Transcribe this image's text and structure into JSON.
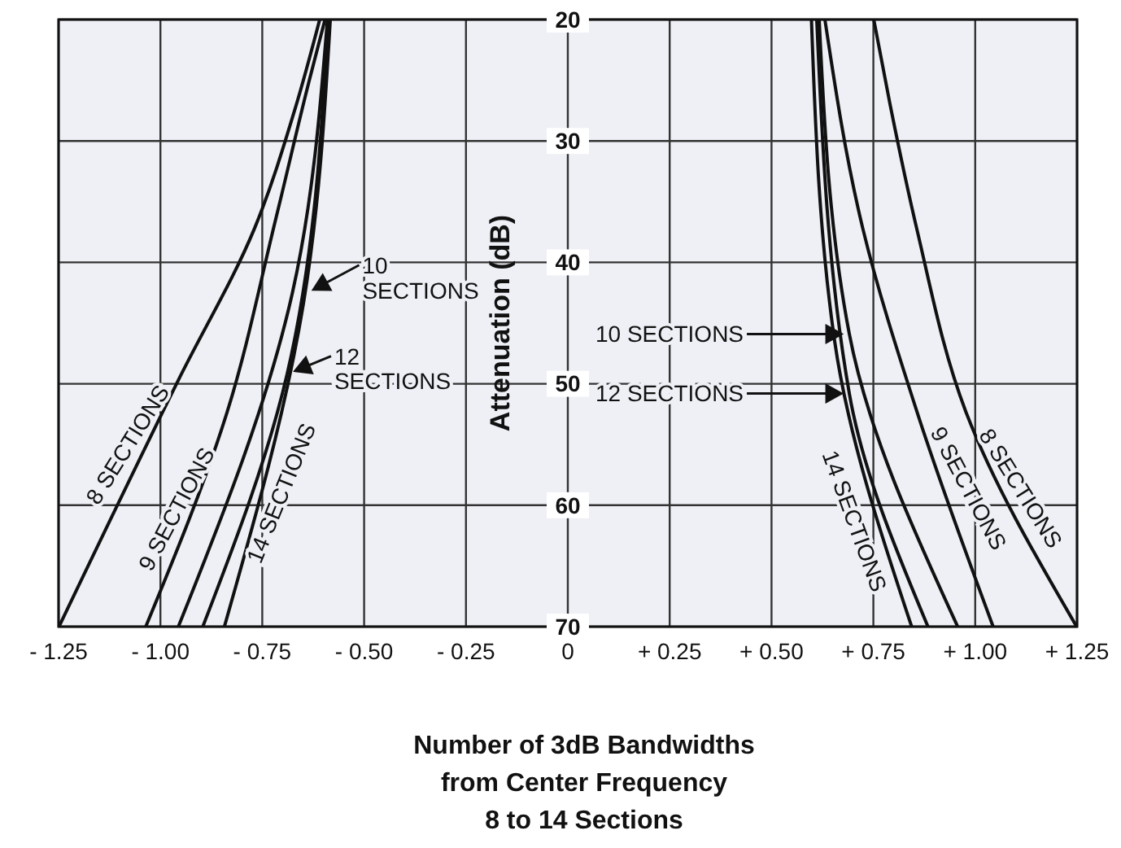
{
  "chart_data": {
    "type": "line",
    "xlabel": "Number of 3dB Bandwidths from Center Frequency",
    "subtitle": "8 to 14 Sections",
    "ylabel": "Attenuation (dB)",
    "series": [
      {
        "color": "#111111",
        "x": [
          -1.249,
          -0.956,
          -0.769,
          -0.669,
          -0.609,
          null,
          0.751,
          0.791,
          0.857,
          0.977,
          1.249
        ],
        "values": [
          70,
          49.7,
          37.2,
          27.3,
          20,
          null,
          20,
          27,
          37.3,
          52.3,
          70
        ]
      },
      {
        "color": "#111111",
        "x": [
          -1.036,
          -0.836,
          -0.716,
          -0.636,
          -0.596,
          null,
          0.631,
          0.724,
          0.857,
          1.044
        ],
        "values": [
          70,
          52.3,
          36.3,
          25.2,
          20,
          null,
          20,
          37.2,
          52.3,
          70
        ]
      },
      {
        "color": "#111111",
        "x": [
          -0.956,
          -0.676,
          -0.59,
          null,
          0.617,
          0.691,
          0.957
        ],
        "values": [
          70,
          42.5,
          20,
          null,
          20,
          45.9,
          70
        ]
      },
      {
        "color": "#111111",
        "x": [
          -0.896,
          -0.689,
          -0.588,
          null,
          0.611,
          0.691,
          0.884
        ],
        "values": [
          70,
          49.2,
          20,
          null,
          20,
          50.8,
          70
        ]
      },
      {
        "color": "#111111",
        "x": [
          -0.843,
          -0.649,
          -0.583,
          null,
          0.598,
          0.655,
          0.844
        ],
        "values": [
          70,
          43.4,
          20,
          null,
          20,
          46.5,
          70
        ]
      }
    ],
    "annotations": [
      "8 SECTIONS",
      "9 SECTIONS",
      "14 SECTIONS",
      "10 SECTIONS",
      "12 SECTIONS",
      "10 SECTIONS",
      "12 SECTIONS",
      "14 SECTIONS",
      "9 SECTIONS",
      "8 SECTIONS"
    ],
    "xlim": [
      -1.25,
      1.25
    ],
    "ylim": [
      70,
      20
    ],
    "xticks": [
      {
        "value": -1.25,
        "label": "- 1.25"
      },
      {
        "value": -1,
        "label": "- 1.00"
      },
      {
        "value": -0.75,
        "label": "- 0.75"
      },
      {
        "value": -0.5,
        "label": "- 0.50"
      },
      {
        "value": -0.25,
        "label": "- 0.25"
      },
      0,
      {
        "value": 0.25,
        "label": "+ 0.25"
      },
      {
        "value": 0.5,
        "label": "+ 0.50"
      },
      {
        "value": 0.75,
        "label": "+ 0.75"
      },
      {
        "value": 1,
        "label": "+ 1.00"
      },
      {
        "value": 1.25,
        "label": "+ 1.25"
      }
    ],
    "yticks": [
      20,
      30,
      40,
      50,
      60,
      70
    ],
    "grid": true,
    "marker": "none",
    "line_style": "solid"
  }
}
